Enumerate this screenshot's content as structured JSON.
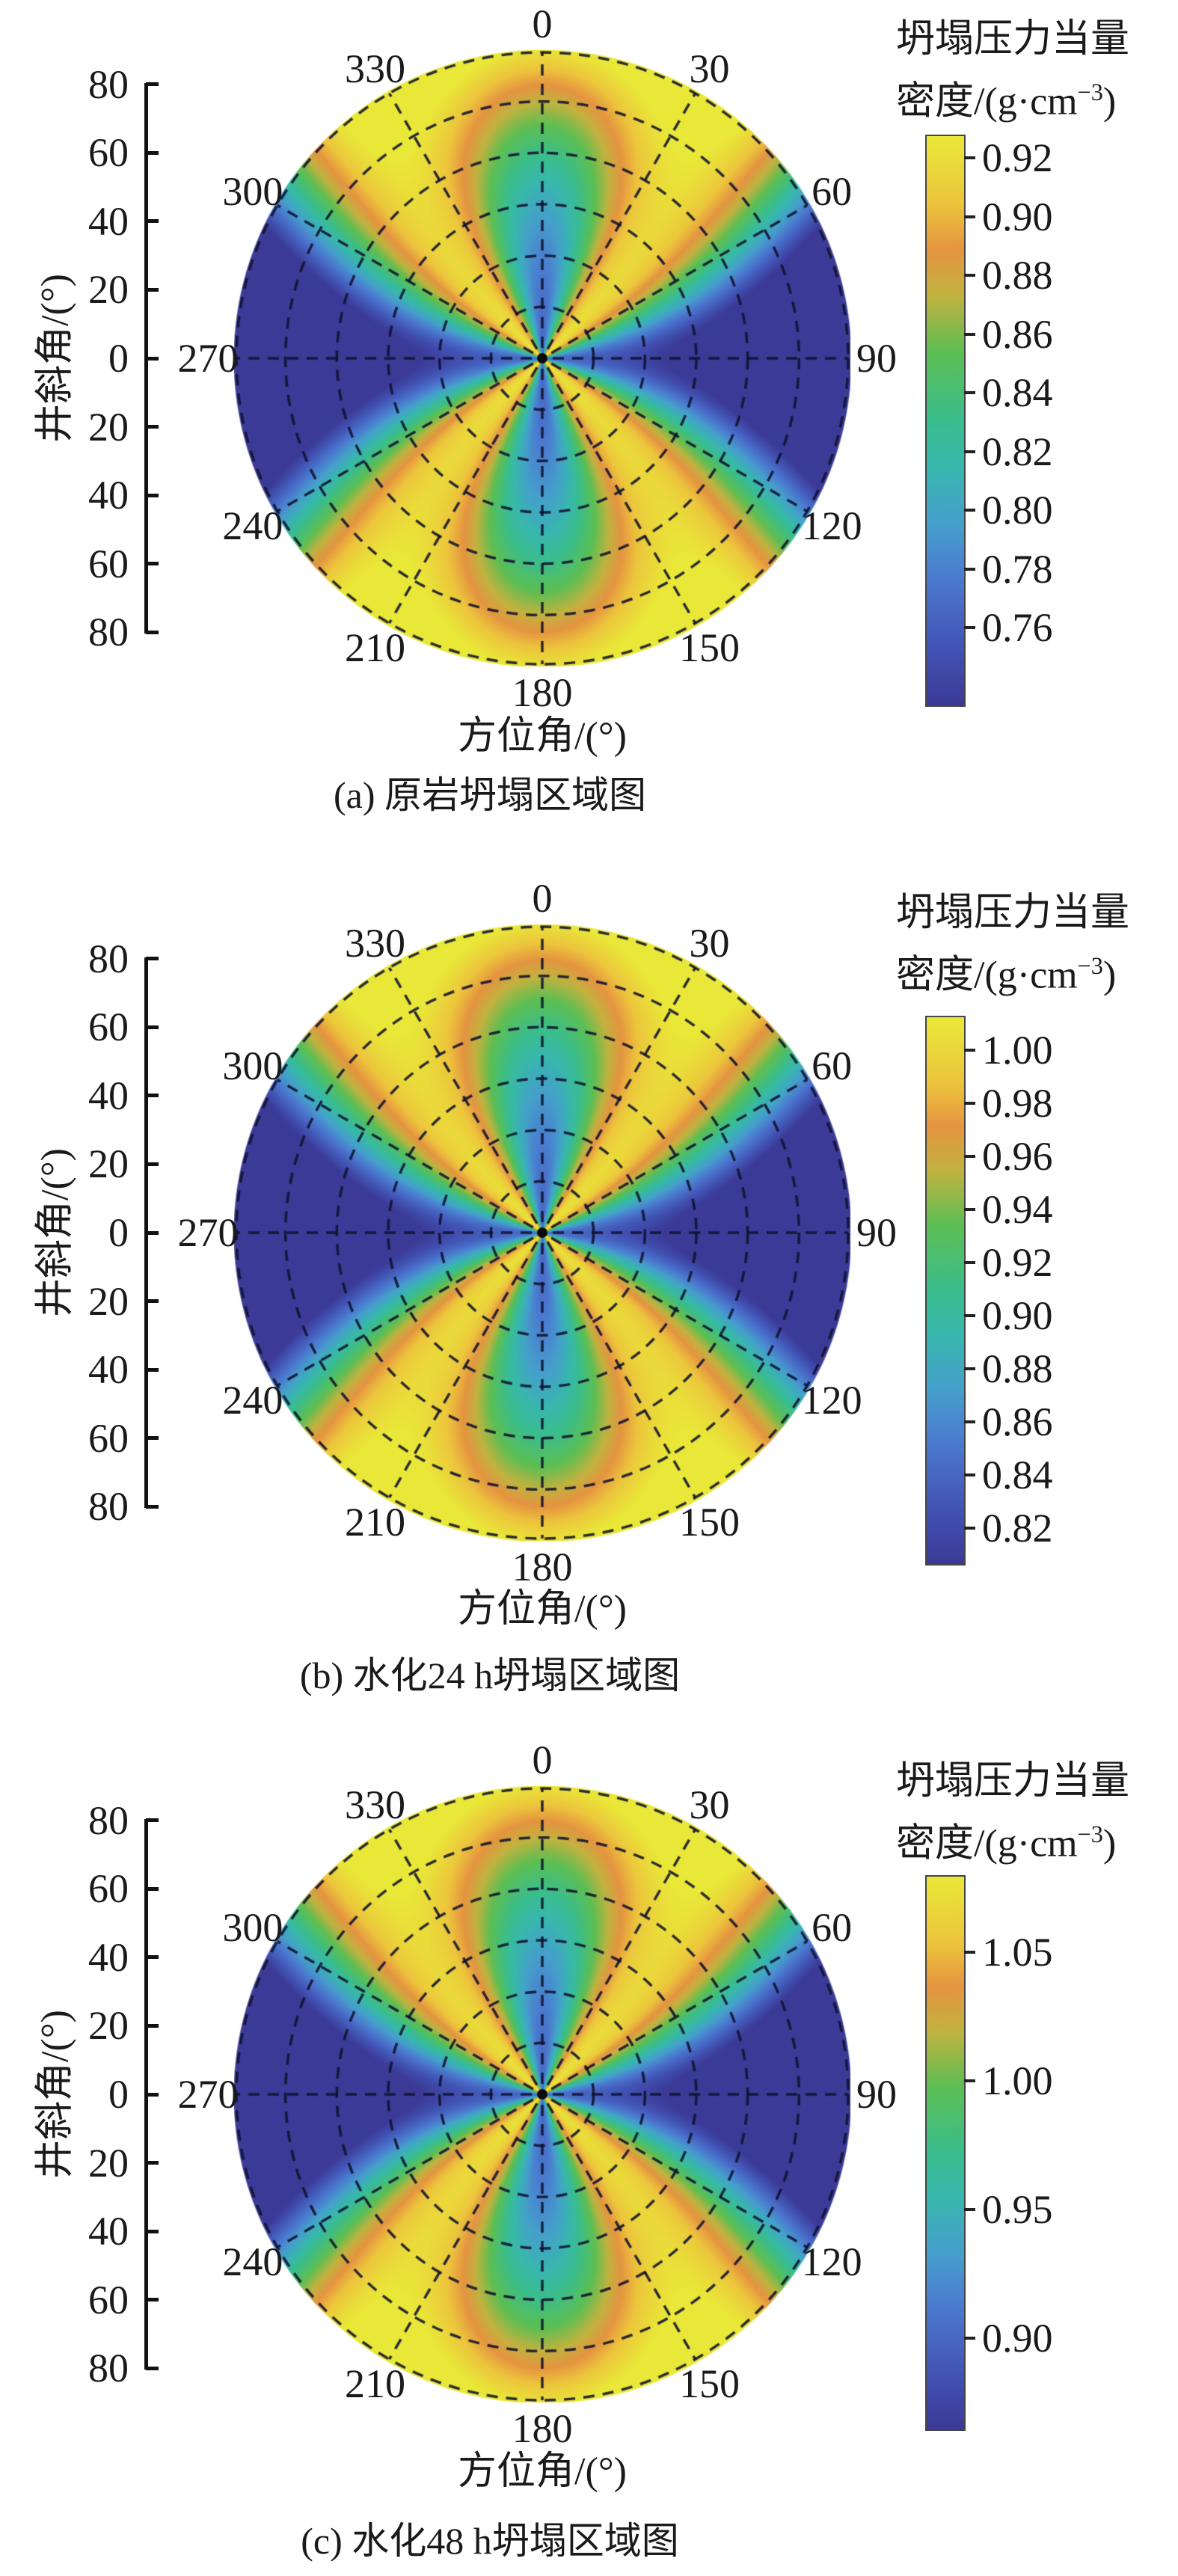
{
  "figure": {
    "background_color": "#ffffff",
    "text_color": "#1a1a1a",
    "axis_titles": {
      "radial": "井斜角/(°)",
      "angular": "方位角/(°)"
    },
    "colorbar_title": {
      "line1": "坍塌压力当量",
      "line2_prefix": "密度/(g·cm",
      "line2_superscript": "−3",
      "line2_suffix": ")"
    }
  },
  "chart_data": {
    "type": "heatmap",
    "subtype": "polar_wellbore_collapse_pressure_map",
    "shared": {
      "angular_ticks_deg": [
        0,
        30,
        60,
        90,
        120,
        150,
        180,
        210,
        240,
        270,
        300,
        330
      ],
      "angular_tick_labels": [
        "0",
        "30",
        "60",
        "90",
        "120",
        "150",
        "180",
        "210",
        "240",
        "270",
        "300",
        "330"
      ],
      "radial_tick_labels": [
        "80",
        "60",
        "40",
        "20",
        "0",
        "20",
        "40",
        "60",
        "80"
      ],
      "radial_axis_max_deg": 90,
      "radial_tick_step_deg": 20,
      "grid": {
        "rings_step_deg": 15,
        "spokes_step_deg": 30,
        "line_style": "dashed",
        "line_color": "#10122d"
      },
      "colormap_stops": [
        [
          0.0,
          "#3b3a96"
        ],
        [
          0.1,
          "#4253b4"
        ],
        [
          0.22,
          "#4b79cf"
        ],
        [
          0.32,
          "#459fcb"
        ],
        [
          0.42,
          "#38b7ad"
        ],
        [
          0.5,
          "#3abd8d"
        ],
        [
          0.62,
          "#5cbe53"
        ],
        [
          0.72,
          "#c1b23f"
        ],
        [
          0.8,
          "#e59440"
        ],
        [
          0.88,
          "#ecc43c"
        ],
        [
          1.0,
          "#e9e838"
        ]
      ],
      "field_model": {
        "base0": 0.18,
        "base_slope": -0.1,
        "cos2az_amp": 0.9,
        "sin2az_sq_amp": 0.8,
        "formula": "t = clamp(0.18 - 0.10*r + 0.90*r^2*cos(2*az) + 0.80*sin(2*az)^2, 0, 1); r = inclination/90; density = vmin + t*(vmax - vmin)",
        "description": "低坍塌压力(深蓝)沿方位角90°/270°方向延伸至井斜90°；方位角0°/180°在低井斜处为蓝色低值带并随井斜增大经绿、橙渐变为黄色；对角方位(约45°/135°/225°/315°)为黄色高值扇区；外环大部分为黄色"
      }
    },
    "charts": [
      {
        "id": "a",
        "caption": "(a) 原岩坍塌区域图",
        "unit": "g·cm⁻³",
        "colorbar_tick_labels": [
          "0.92",
          "0.90",
          "0.88",
          "0.86",
          "0.84",
          "0.82",
          "0.80",
          "0.78",
          "0.76"
        ],
        "colorbar_tick_values": [
          0.92,
          0.9,
          0.88,
          0.86,
          0.84,
          0.82,
          0.8,
          0.78,
          0.76
        ],
        "value_range": [
          0.733,
          0.928
        ]
      },
      {
        "id": "b",
        "caption": "(b) 水化24 h坍塌区域图",
        "unit": "g·cm⁻³",
        "colorbar_tick_labels": [
          "1.00",
          "0.98",
          "0.96",
          "0.94",
          "0.92",
          "0.90",
          "0.88",
          "0.86",
          "0.84",
          "0.82"
        ],
        "colorbar_tick_values": [
          1.0,
          0.98,
          0.96,
          0.94,
          0.92,
          0.9,
          0.88,
          0.86,
          0.84,
          0.82
        ],
        "value_range": [
          0.806,
          1.013
        ]
      },
      {
        "id": "c",
        "caption": "(c) 水化48 h坍塌区域图",
        "unit": "g·cm⁻³",
        "colorbar_tick_labels": [
          "1.05",
          "1.00",
          "0.95",
          "0.90"
        ],
        "colorbar_tick_values": [
          1.05,
          1.0,
          0.95,
          0.9
        ],
        "value_range": [
          0.864,
          1.08
        ]
      }
    ]
  }
}
